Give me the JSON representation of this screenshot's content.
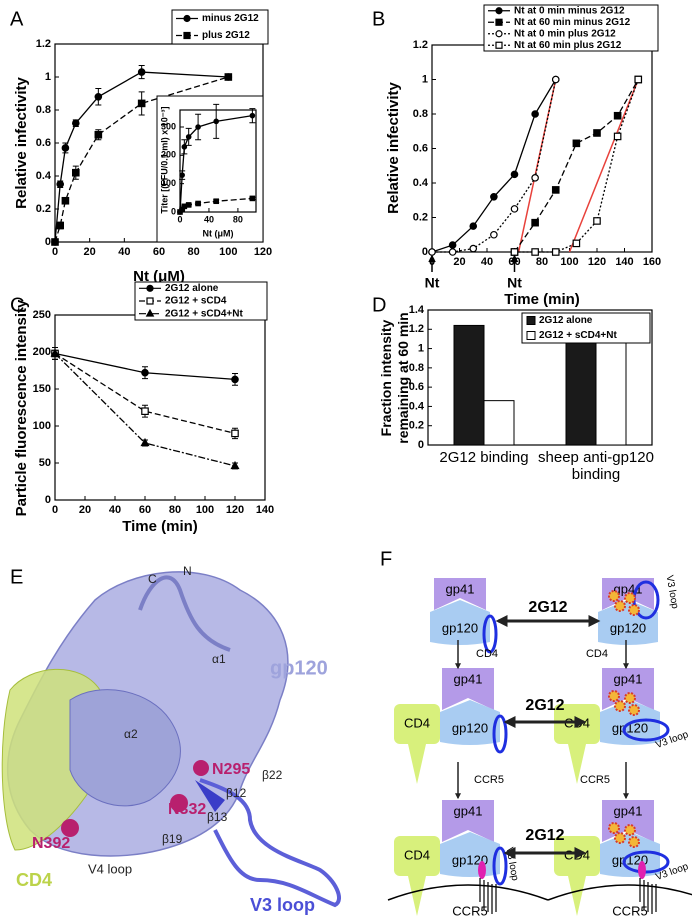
{
  "chart_data": [
    {
      "type": "line",
      "panel": "A",
      "y_label": "Relative infectivity",
      "x_label": "Nt (μM)",
      "x": [
        0,
        3,
        6,
        12,
        25,
        50,
        100
      ],
      "xlim": [
        0,
        120
      ],
      "xticks": [
        0,
        20,
        40,
        60,
        80,
        100,
        120
      ],
      "ylim": [
        0,
        1.2
      ],
      "yticks": [
        0,
        0.2,
        0.4,
        0.6,
        0.8,
        1,
        1.2
      ],
      "legend": "upper right",
      "series": [
        {
          "name": "minus 2G12",
          "color": "#000000",
          "dash": "solid",
          "marker": "circle",
          "marker_fill": "filled",
          "values": [
            0,
            0.35,
            0.57,
            0.72,
            0.88,
            1.03,
            1.0
          ],
          "errors": [
            0,
            0.02,
            0.03,
            0.02,
            0.05,
            0.04,
            0
          ]
        },
        {
          "name": "plus 2G12",
          "color": "#000000",
          "dash": "dashed",
          "marker": "square",
          "marker_fill": "filled",
          "values": [
            0,
            0.1,
            0.25,
            0.42,
            0.65,
            0.84,
            1.0
          ],
          "errors": [
            0,
            0.02,
            0.02,
            0.04,
            0.03,
            0.07,
            0
          ]
        }
      ]
    },
    {
      "type": "line",
      "y_label": "Titer [(FFU/0.1 ml) x 10⁻³]",
      "x_label": "Nt (μM)",
      "x": [
        0,
        3,
        6,
        12,
        25,
        50,
        100
      ],
      "xlim": [
        0,
        105
      ],
      "xticks": [
        0,
        40,
        80
      ],
      "ylim": [
        0,
        360
      ],
      "yticks": [
        0,
        100,
        200,
        300
      ],
      "series": [
        {
          "color": "#000000",
          "dash": "solid",
          "marker": "circle",
          "marker_fill": "filled",
          "values": [
            0,
            130,
            230,
            265,
            300,
            320,
            340
          ],
          "errors": [
            0,
            15,
            25,
            30,
            45,
            60,
            25
          ]
        },
        {
          "color": "#000000",
          "dash": "dashed",
          "marker": "square",
          "marker_fill": "filled",
          "values": [
            0,
            10,
            20,
            25,
            30,
            38,
            48
          ],
          "errors": [
            0,
            3,
            3,
            4,
            4,
            5,
            4
          ]
        }
      ]
    },
    {
      "type": "line",
      "panel": "B",
      "y_label": "Relative infectivity",
      "x_label": "Time (min)",
      "xlim": [
        0,
        160
      ],
      "xticks": [
        0,
        20,
        40,
        60,
        80,
        100,
        120,
        140,
        160
      ],
      "ylim": [
        0,
        1.2
      ],
      "yticks": [
        0,
        0.2,
        0.4,
        0.6,
        0.8,
        1,
        1.2
      ],
      "legend": "upper right",
      "series": [
        {
          "name": "Nt at 0 min minus 2G12",
          "color": "#000000",
          "dash": "solid",
          "marker": "circle",
          "marker_fill": "filled",
          "x": [
            0,
            15,
            30,
            45,
            60,
            75,
            90
          ],
          "values": [
            0,
            0.04,
            0.15,
            0.32,
            0.45,
            0.8,
            1.0
          ]
        },
        {
          "name": "Nt at 60 min minus 2G12",
          "color": "#000000",
          "dash": "dashed",
          "marker": "square",
          "marker_fill": "filled",
          "x": [
            60,
            75,
            90,
            105,
            120,
            135,
            150
          ],
          "values": [
            0,
            0.17,
            0.36,
            0.63,
            0.69,
            0.79,
            1.0
          ]
        },
        {
          "name": "Nt at 0 min plus 2G12",
          "color": "#000000",
          "dash": "dotted",
          "marker": "circle",
          "marker_fill": "open",
          "x": [
            0,
            15,
            30,
            45,
            60,
            75,
            90
          ],
          "values": [
            0,
            0,
            0.02,
            0.1,
            0.25,
            0.43,
            1.0
          ]
        },
        {
          "name": "Nt at 60 min plus 2G12",
          "color": "#000000",
          "dash": "dotted",
          "marker": "square",
          "marker_fill": "open",
          "x": [
            60,
            75,
            90,
            105,
            120,
            135,
            150
          ],
          "values": [
            0,
            0,
            0,
            0.05,
            0.18,
            0.67,
            1.0
          ]
        }
      ],
      "fits": [
        {
          "color": "#e8413b",
          "x": [
            63,
            90
          ],
          "values": [
            0,
            1
          ]
        },
        {
          "color": "#e8413b",
          "x": [
            100,
            150
          ],
          "values": [
            0,
            1
          ]
        }
      ],
      "annotations": [
        {
          "text": "Nt",
          "x": 0
        },
        {
          "text": "Nt",
          "x": 60
        }
      ]
    },
    {
      "type": "line",
      "panel": "C",
      "y_label": "Particle fluorescence intensity",
      "x_label": "Time (min)",
      "x": [
        0,
        60,
        120
      ],
      "xlim": [
        0,
        140
      ],
      "xticks": [
        0,
        20,
        40,
        60,
        80,
        100,
        120,
        140
      ],
      "ylim": [
        0,
        250
      ],
      "yticks": [
        0,
        50,
        100,
        150,
        200,
        250
      ],
      "legend": "upper right",
      "series": [
        {
          "name": "2G12 alone",
          "color": "#000000",
          "dash": "solid",
          "marker": "circle",
          "marker_fill": "filled",
          "values": [
            198,
            172,
            163
          ],
          "errors": [
            8,
            8,
            8
          ]
        },
        {
          "name": "2G12 + sCD4",
          "color": "#000000",
          "dash": "dashed",
          "marker": "square",
          "marker_fill": "open",
          "values": [
            198,
            120,
            90
          ],
          "errors": [
            8,
            8,
            7
          ]
        },
        {
          "name": "2G12 + sCD4+Nt",
          "color": "#000000",
          "dash": "dashdot",
          "marker": "triangle",
          "marker_fill": "filled",
          "values": [
            198,
            77,
            46
          ],
          "errors": [
            8,
            4,
            4
          ]
        }
      ]
    },
    {
      "type": "bar",
      "panel": "D",
      "y_label": "Fraction intensity remaining at 60 min",
      "categories": [
        "2G12 binding",
        "sheep anti-gp120 binding"
      ],
      "ylim": [
        0,
        1.4
      ],
      "yticks": [
        0,
        0.2,
        0.4,
        0.6,
        0.8,
        1,
        1.2,
        1.4
      ],
      "legend": "upper right",
      "series": [
        {
          "name": "2G12 alone",
          "color": "#1a1a1a",
          "values": [
            1.24,
            1.14
          ]
        },
        {
          "name": "2G12 + sCD4+Nt",
          "color": "#ffffff",
          "values": [
            0.46,
            1.1
          ]
        }
      ]
    }
  ],
  "panel_e": {
    "panel": "E",
    "labels": [
      {
        "text": "C",
        "color": "#222222"
      },
      {
        "text": "N",
        "color": "#222222"
      },
      {
        "text": "α1",
        "color": "#222222"
      },
      {
        "text": "gp120",
        "color": "#9ea3dc"
      },
      {
        "text": "α2",
        "color": "#222222"
      },
      {
        "text": "N295",
        "color": "#b8206e"
      },
      {
        "text": "β22",
        "color": "#222222"
      },
      {
        "text": "β12",
        "color": "#222222"
      },
      {
        "text": "N332",
        "color": "#b8206e"
      },
      {
        "text": "β13",
        "color": "#222222"
      },
      {
        "text": "N392",
        "color": "#b8206e"
      },
      {
        "text": "β19",
        "color": "#222222"
      },
      {
        "text": "CD4",
        "color": "#bcd34a"
      },
      {
        "text": "V4 loop",
        "color": "#222222"
      },
      {
        "text": "V3 loop",
        "color": "#4b4fd6"
      }
    ]
  },
  "panel_f": {
    "panel": "F",
    "antibody_arrows": [
      "2G12",
      "2G12",
      "2G12"
    ],
    "steps": [
      "CD4",
      "CD4",
      "CCR5",
      "CCR5"
    ],
    "states": [
      {
        "gp41": "gp41",
        "gp120": "gp120"
      },
      {
        "gp41": "gp41",
        "gp120": "gp120",
        "v3_loop": "V3 loop"
      },
      {
        "cd4": "CD4",
        "gp41": "gp41",
        "gp120": "gp120"
      },
      {
        "cd4": "CD4",
        "gp41": "gp41",
        "gp120": "gp120",
        "v3_loop": "V3 loop"
      },
      {
        "cd4": "CD4",
        "gp41": "gp41",
        "gp120": "gp120",
        "v3_loop": "V3 loop",
        "ccr5": "CCR5"
      },
      {
        "cd4": "CD4",
        "gp41": "gp41",
        "gp120": "gp120",
        "v3_loop": "V3 loop",
        "ccr5": "CCR5"
      }
    ]
  }
}
